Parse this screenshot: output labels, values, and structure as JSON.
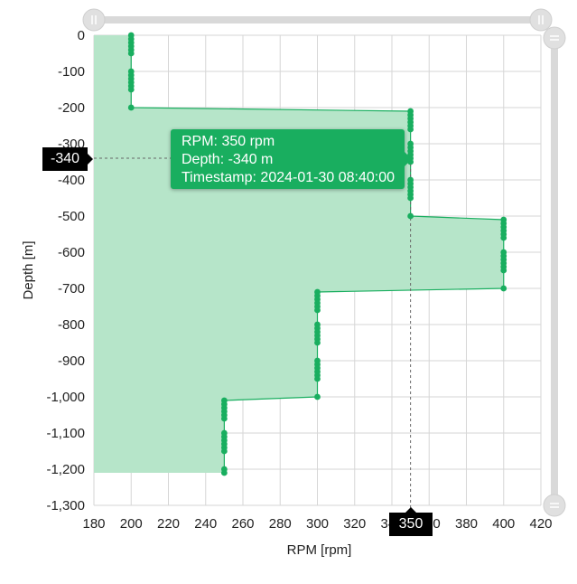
{
  "chart_data": {
    "type": "area",
    "orientation": "vertical-depth",
    "xlabel": "RPM [rpm]",
    "ylabel": "Depth [m]",
    "xlim": [
      180,
      420
    ],
    "ylim": [
      -1300,
      0
    ],
    "x_ticks": [
      "180",
      "200",
      "220",
      "240",
      "260",
      "280",
      "300",
      "320",
      "340",
      "360",
      "380",
      "400",
      "420"
    ],
    "y_ticks": [
      "0",
      "-100",
      "-200",
      "-300",
      "-400",
      "-500",
      "-600",
      "-700",
      "-800",
      "-900",
      "-1,000",
      "-1,100",
      "-1,200",
      "-1,300"
    ],
    "grid": true,
    "fill_color": "#b6e5c9",
    "line_color": "#19ae5f",
    "series": [
      {
        "points": [
          [
            200,
            0
          ],
          [
            200,
            -10
          ],
          [
            200,
            -20
          ],
          [
            200,
            -30
          ],
          [
            200,
            -40
          ],
          [
            200,
            -50
          ],
          [
            200,
            -100
          ],
          [
            200,
            -110
          ],
          [
            200,
            -120
          ],
          [
            200,
            -130
          ],
          [
            200,
            -140
          ],
          [
            200,
            -150
          ],
          [
            200,
            -200
          ],
          [
            350,
            -210
          ],
          [
            350,
            -220
          ],
          [
            350,
            -230
          ],
          [
            350,
            -240
          ],
          [
            350,
            -250
          ],
          [
            350,
            -260
          ],
          [
            350,
            -300
          ],
          [
            350,
            -310
          ],
          [
            350,
            -320
          ],
          [
            350,
            -330
          ],
          [
            350,
            -340
          ],
          [
            350,
            -350
          ],
          [
            350,
            -400
          ],
          [
            350,
            -410
          ],
          [
            350,
            -420
          ],
          [
            350,
            -430
          ],
          [
            350,
            -440
          ],
          [
            350,
            -450
          ],
          [
            350,
            -500
          ],
          [
            400,
            -510
          ],
          [
            400,
            -520
          ],
          [
            400,
            -530
          ],
          [
            400,
            -540
          ],
          [
            400,
            -550
          ],
          [
            400,
            -560
          ],
          [
            400,
            -600
          ],
          [
            400,
            -610
          ],
          [
            400,
            -620
          ],
          [
            400,
            -630
          ],
          [
            400,
            -640
          ],
          [
            400,
            -650
          ],
          [
            400,
            -700
          ],
          [
            300,
            -710
          ],
          [
            300,
            -720
          ],
          [
            300,
            -730
          ],
          [
            300,
            -740
          ],
          [
            300,
            -750
          ],
          [
            300,
            -760
          ],
          [
            300,
            -800
          ],
          [
            300,
            -810
          ],
          [
            300,
            -820
          ],
          [
            300,
            -830
          ],
          [
            300,
            -840
          ],
          [
            300,
            -850
          ],
          [
            300,
            -900
          ],
          [
            300,
            -910
          ],
          [
            300,
            -920
          ],
          [
            300,
            -930
          ],
          [
            300,
            -940
          ],
          [
            300,
            -950
          ],
          [
            300,
            -1000
          ],
          [
            250,
            -1010
          ],
          [
            250,
            -1020
          ],
          [
            250,
            -1030
          ],
          [
            250,
            -1040
          ],
          [
            250,
            -1050
          ],
          [
            250,
            -1060
          ],
          [
            250,
            -1100
          ],
          [
            250,
            -1110
          ],
          [
            250,
            -1120
          ],
          [
            250,
            -1130
          ],
          [
            250,
            -1140
          ],
          [
            250,
            -1150
          ],
          [
            250,
            -1200
          ],
          [
            250,
            -1210
          ]
        ]
      }
    ],
    "crosshair": {
      "x": 350,
      "y": -340
    },
    "crosshair_labels": {
      "x": "350",
      "y": "-340"
    },
    "tooltip": {
      "line1": "RPM: 350 rpm",
      "line2": "Depth: -340 m",
      "line3": "Timestamp: 2024-01-30 08:40:00"
    }
  },
  "zoom_sliders": {
    "horizontal": {
      "start_fraction": 0,
      "end_fraction": 1
    },
    "vertical": {
      "start_fraction": 0,
      "end_fraction": 1
    }
  }
}
